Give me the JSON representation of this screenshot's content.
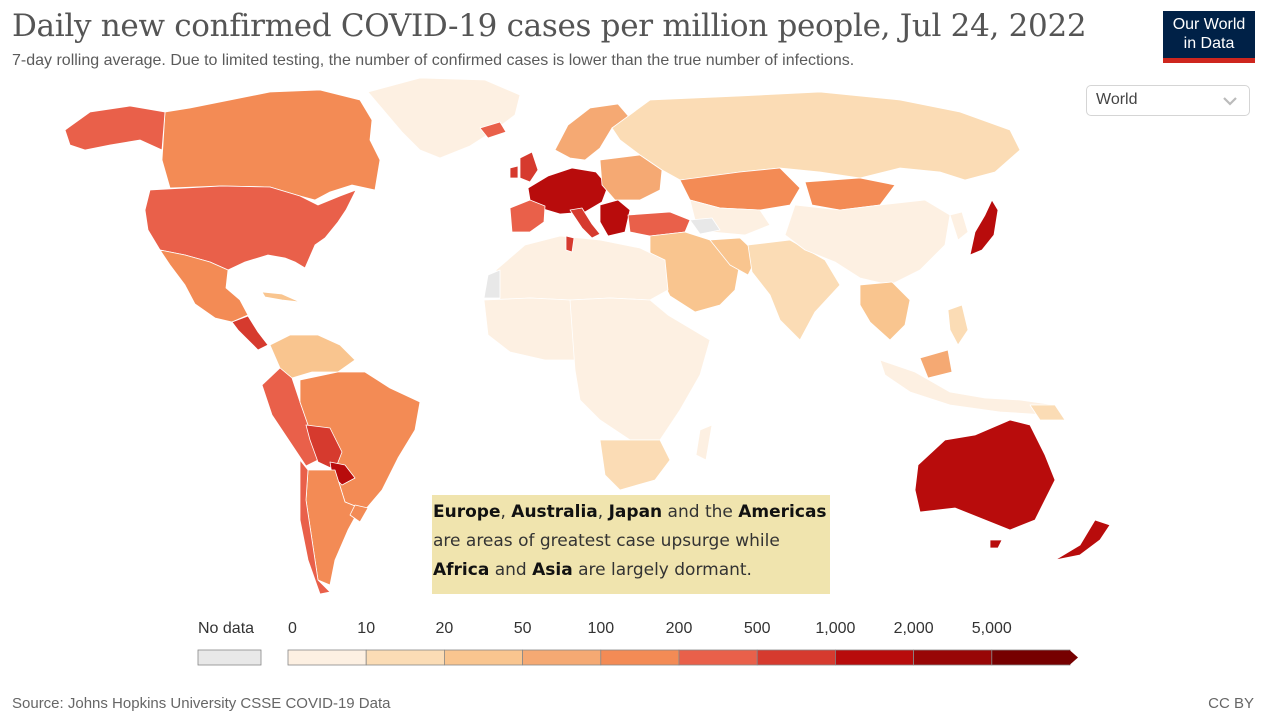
{
  "header": {
    "title": "Daily new confirmed COVID-19 cases per million people, Jul 24, 2022",
    "subtitle": "7-day rolling average. Due to limited testing, the number of confirmed cases is lower than the true number of infections."
  },
  "logo": {
    "line1": "Our World",
    "line2": "in Data",
    "bg_color": "#002147",
    "stripe_color": "#ce261e"
  },
  "region_select": {
    "value": "World",
    "icon": "chevron-down-icon"
  },
  "annotation": {
    "line1": [
      "Europe",
      ", ",
      "Australia",
      ", ",
      "Japan",
      " and the ",
      "Americas"
    ],
    "line2": "are areas of greatest case upsurge while",
    "line3": [
      "Africa",
      " and ",
      "Asia",
      " are largely dormant."
    ],
    "bg_color": "#f0e4ae"
  },
  "legend": {
    "no_data_label": "No data",
    "no_data_color": "#e8e8e8",
    "bins": [
      {
        "from": "0",
        "color": "#fdf0e2"
      },
      {
        "from": "10",
        "color": "#fbdcb5"
      },
      {
        "from": "20",
        "color": "#f9c58f"
      },
      {
        "from": "50",
        "color": "#f5a973"
      },
      {
        "from": "100",
        "color": "#f38b55"
      },
      {
        "from": "200",
        "color": "#e9604a"
      },
      {
        "from": "500",
        "color": "#d63a2e"
      },
      {
        "from": "1,000",
        "color": "#b80c0c"
      },
      {
        "from": "2,000",
        "color": "#980606"
      },
      {
        "from": "5,000",
        "color": "#760000"
      }
    ]
  },
  "footer": {
    "source": "Source: Johns Hopkins University CSSE COVID-19 Data",
    "license": "CC BY"
  }
}
